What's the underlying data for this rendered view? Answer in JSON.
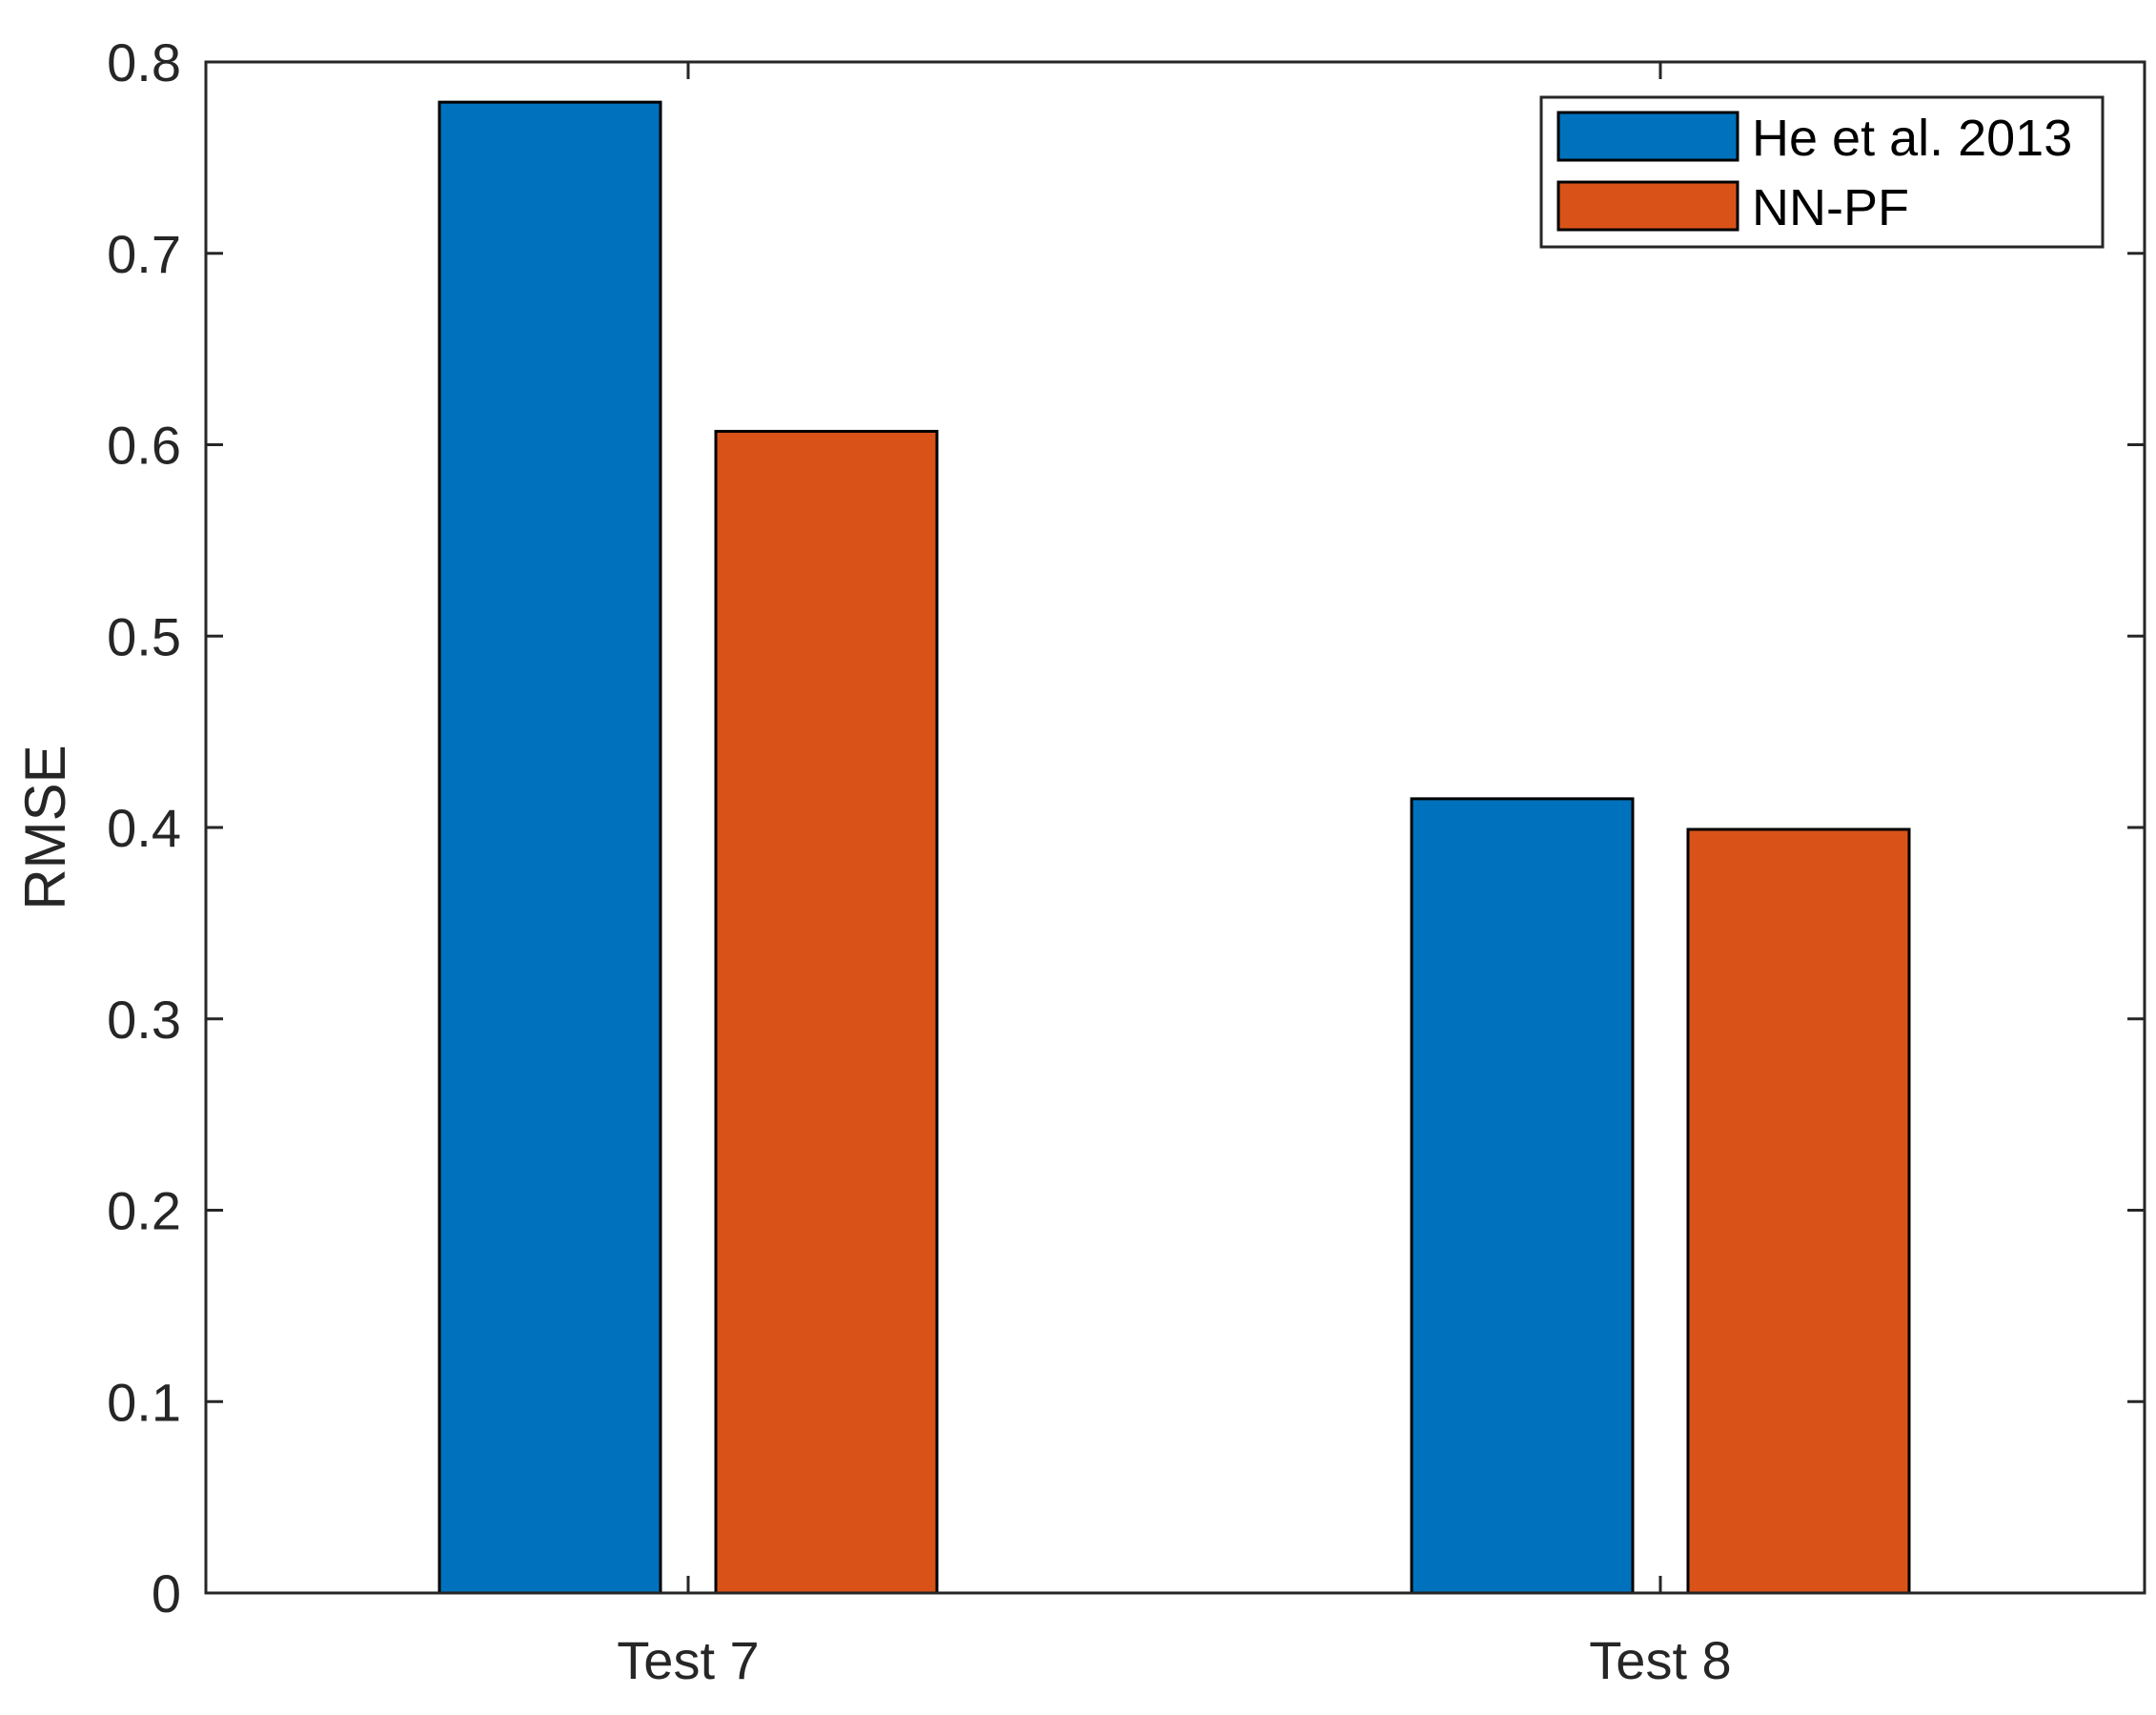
{
  "chart_data": {
    "type": "bar",
    "categories": [
      "Test 7",
      "Test 8"
    ],
    "series": [
      {
        "name": "He et al. 2013",
        "values": [
          0.779,
          0.415
        ],
        "color": "#0072BD"
      },
      {
        "name": "NN-PF",
        "values": [
          0.607,
          0.399
        ],
        "color": "#D95319"
      }
    ],
    "title": "",
    "xlabel": "",
    "ylabel": "RMSE",
    "ylim": [
      0,
      0.8
    ],
    "yticks": [
      "0",
      "0.1",
      "0.2",
      "0.3",
      "0.4",
      "0.5",
      "0.6",
      "0.7",
      "0.8"
    ],
    "grid": false,
    "legend_position": "top-right"
  }
}
